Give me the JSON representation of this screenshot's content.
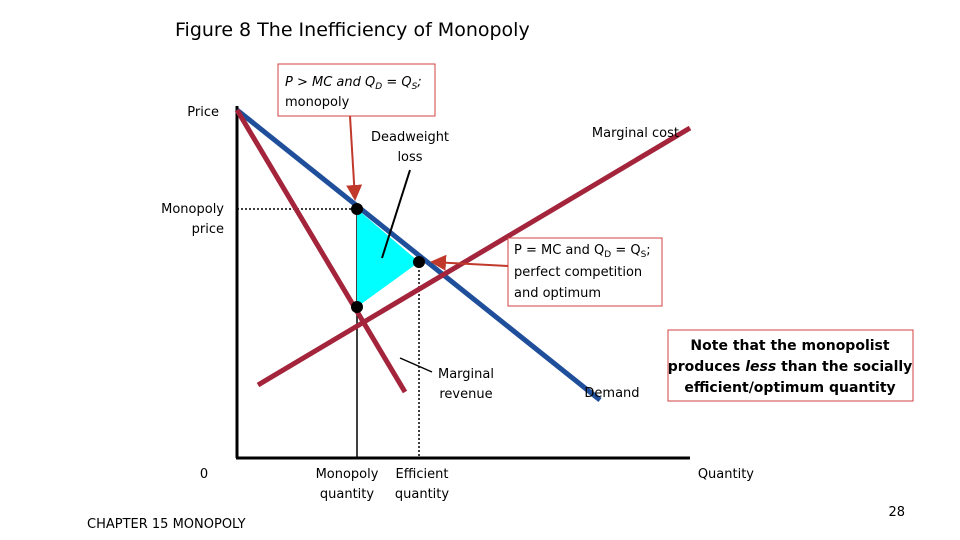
{
  "title": "Figure 8 The Inefficiency of Monopoly",
  "axes": {
    "y_label": "Price",
    "x_label": "Quantity",
    "origin": "0"
  },
  "monopoly_price": [
    "Monopoly",
    "price"
  ],
  "monopoly_quantity": [
    "Monopoly",
    "quantity"
  ],
  "efficient_quantity": [
    "Efficient",
    "quantity"
  ],
  "curves": {
    "marginal_cost": "Marginal cost",
    "marginal_revenue": [
      "Marginal",
      "revenue"
    ],
    "demand": "Demand"
  },
  "deadweight_loss": [
    "Deadweight",
    "loss"
  ],
  "callout_monopoly": {
    "line1": [
      "P > MC and Q",
      "D",
      " = Q",
      "S",
      ";"
    ],
    "line2": "monopoly"
  },
  "callout_competition": {
    "line1": [
      "P = MC and Q",
      "D",
      " = Q",
      "S",
      ";"
    ],
    "line2": "perfect competition",
    "line3": "and optimum"
  },
  "note": {
    "line1": "Note that the monopolist",
    "line2": [
      "produces ",
      "less",
      " than the socially"
    ],
    "line3": "efficient/optimum quantity"
  },
  "footer": {
    "chapter": "CHAPTER 15 MONOPOLY",
    "page": "28"
  }
}
